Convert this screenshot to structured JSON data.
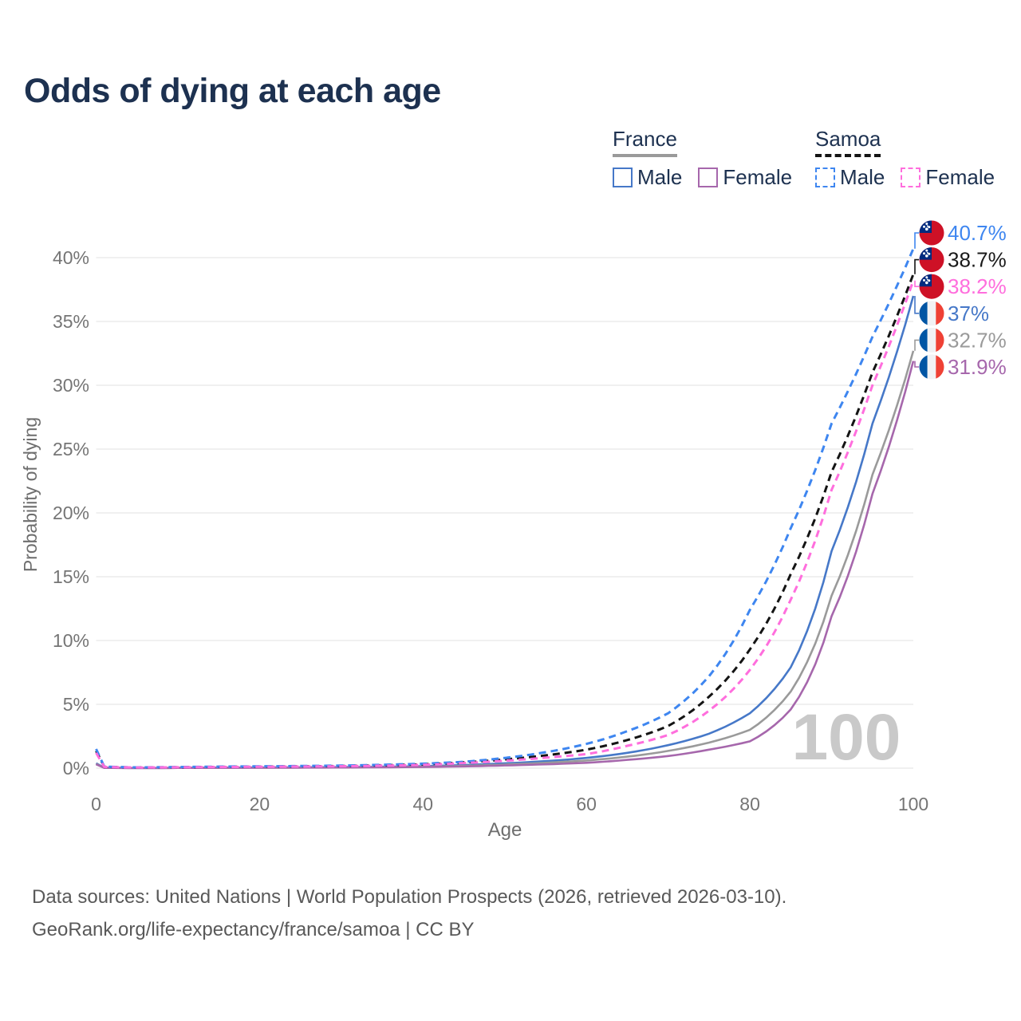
{
  "title": "Odds of dying at each age",
  "legend": {
    "groups": [
      {
        "country": "France",
        "line_style": "solid",
        "underline_color": "#9a9a9a",
        "items": [
          {
            "label": "Male",
            "color": "#4678C8"
          },
          {
            "label": "Female",
            "color": "#A667AC"
          }
        ]
      },
      {
        "country": "Samoa",
        "line_style": "dashed",
        "underline_color": "#141414",
        "items": [
          {
            "label": "Male",
            "color": "#3E86F0"
          },
          {
            "label": "Female",
            "color": "#FF6EDD"
          }
        ]
      }
    ]
  },
  "chart_data": {
    "type": "line",
    "title": "Odds of dying at each age",
    "xlabel": "Age",
    "ylabel": "Probability of dying",
    "xlim": [
      0,
      100
    ],
    "ylim": [
      0,
      42
    ],
    "x_ticks": [
      0,
      20,
      40,
      60,
      80,
      100
    ],
    "y_ticks": [
      0,
      5,
      10,
      15,
      20,
      25,
      30,
      35,
      40
    ],
    "y_tick_suffix": "%",
    "grid": "horizontal",
    "legend_position": "top-right",
    "watermark": "100",
    "series": [
      {
        "id": "samoa-male",
        "name": "Samoa — Male",
        "country": "Samoa",
        "sex": "Male",
        "color": "#3E86F0",
        "line": "dashed",
        "end_label": "40.7%",
        "end_value": 40.7,
        "points": [
          [
            0,
            1.5
          ],
          [
            1,
            0.12
          ],
          [
            5,
            0.06
          ],
          [
            15,
            0.12
          ],
          [
            30,
            0.2
          ],
          [
            40,
            0.35
          ],
          [
            45,
            0.5
          ],
          [
            50,
            0.8
          ],
          [
            55,
            1.25
          ],
          [
            60,
            1.9
          ],
          [
            65,
            2.9
          ],
          [
            70,
            4.3
          ],
          [
            75,
            7.2
          ],
          [
            80,
            12.4
          ],
          [
            85,
            18.8
          ],
          [
            90,
            27.0
          ],
          [
            95,
            33.8
          ],
          [
            100,
            40.7
          ]
        ]
      },
      {
        "id": "samoa-all",
        "name": "Samoa — Both sexes",
        "country": "Samoa",
        "sex": "Both",
        "color": "#141414",
        "line": "dashed",
        "end_label": "38.7%",
        "end_value": 38.7,
        "points": [
          [
            0,
            1.35
          ],
          [
            1,
            0.11
          ],
          [
            5,
            0.05
          ],
          [
            15,
            0.1
          ],
          [
            30,
            0.17
          ],
          [
            40,
            0.3
          ],
          [
            45,
            0.45
          ],
          [
            50,
            0.68
          ],
          [
            55,
            1.0
          ],
          [
            60,
            1.45
          ],
          [
            65,
            2.2
          ],
          [
            70,
            3.3
          ],
          [
            75,
            5.6
          ],
          [
            80,
            9.3
          ],
          [
            85,
            15.2
          ],
          [
            90,
            23.2
          ],
          [
            95,
            31.0
          ],
          [
            100,
            38.7
          ]
        ]
      },
      {
        "id": "samoa-female",
        "name": "Samoa — Female",
        "country": "Samoa",
        "sex": "Female",
        "color": "#FF6EDD",
        "line": "dashed",
        "end_label": "38.2%",
        "end_value": 38.2,
        "points": [
          [
            0,
            1.2
          ],
          [
            1,
            0.1
          ],
          [
            5,
            0.05
          ],
          [
            15,
            0.09
          ],
          [
            30,
            0.15
          ],
          [
            40,
            0.26
          ],
          [
            45,
            0.4
          ],
          [
            50,
            0.58
          ],
          [
            55,
            0.82
          ],
          [
            60,
            1.1
          ],
          [
            65,
            1.75
          ],
          [
            70,
            2.6
          ],
          [
            75,
            4.5
          ],
          [
            80,
            7.7
          ],
          [
            85,
            13.2
          ],
          [
            90,
            21.8
          ],
          [
            95,
            30.0
          ],
          [
            100,
            38.2
          ]
        ]
      },
      {
        "id": "france-male",
        "name": "France — Male",
        "country": "France",
        "sex": "Male",
        "color": "#4678C8",
        "line": "solid",
        "end_label": "37%",
        "end_value": 37,
        "points": [
          [
            0,
            0.38
          ],
          [
            1,
            0.03
          ],
          [
            5,
            0.01
          ],
          [
            15,
            0.04
          ],
          [
            30,
            0.08
          ],
          [
            40,
            0.15
          ],
          [
            45,
            0.25
          ],
          [
            50,
            0.38
          ],
          [
            55,
            0.55
          ],
          [
            60,
            0.8
          ],
          [
            65,
            1.2
          ],
          [
            70,
            1.8
          ],
          [
            75,
            2.7
          ],
          [
            80,
            4.3
          ],
          [
            85,
            7.9
          ],
          [
            90,
            17.0
          ],
          [
            95,
            27.0
          ],
          [
            100,
            37.0
          ]
        ]
      },
      {
        "id": "france-all",
        "name": "France — Both sexes",
        "country": "France",
        "sex": "Both",
        "color": "#9A9A9A",
        "line": "solid",
        "end_label": "32.7%",
        "end_value": 32.7,
        "points": [
          [
            0,
            0.33
          ],
          [
            1,
            0.025
          ],
          [
            5,
            0.01
          ],
          [
            15,
            0.03
          ],
          [
            30,
            0.06
          ],
          [
            40,
            0.11
          ],
          [
            45,
            0.18
          ],
          [
            50,
            0.28
          ],
          [
            55,
            0.42
          ],
          [
            60,
            0.6
          ],
          [
            65,
            0.9
          ],
          [
            70,
            1.35
          ],
          [
            75,
            2.0
          ],
          [
            80,
            3.0
          ],
          [
            85,
            6.0
          ],
          [
            90,
            13.5
          ],
          [
            95,
            23.0
          ],
          [
            100,
            32.7
          ]
        ]
      },
      {
        "id": "france-female",
        "name": "France — Female",
        "country": "France",
        "sex": "Female",
        "color": "#A667AC",
        "line": "solid",
        "end_label": "31.9%",
        "end_value": 31.9,
        "points": [
          [
            0,
            0.3
          ],
          [
            1,
            0.02
          ],
          [
            5,
            0.01
          ],
          [
            15,
            0.025
          ],
          [
            30,
            0.05
          ],
          [
            40,
            0.09
          ],
          [
            45,
            0.14
          ],
          [
            50,
            0.21
          ],
          [
            55,
            0.3
          ],
          [
            60,
            0.42
          ],
          [
            65,
            0.65
          ],
          [
            70,
            0.95
          ],
          [
            75,
            1.45
          ],
          [
            80,
            2.1
          ],
          [
            85,
            4.6
          ],
          [
            90,
            11.9
          ],
          [
            95,
            21.5
          ],
          [
            100,
            31.9
          ]
        ]
      }
    ]
  },
  "flags": {
    "samoa": {
      "field": "#CE1126",
      "canton": "#002B7F",
      "stars": "#FFFFFF"
    },
    "france": {
      "blue": "#0055A4",
      "white": "#F2F2F4",
      "red": "#EF4135"
    }
  },
  "colors": {
    "title": "#1d3150",
    "legend_text": "#1d3150",
    "tick_label": "#757575",
    "axis_title": "#6e6e6e",
    "grid": "#ececec",
    "watermark": "#c9c9c9",
    "footer": "#595959",
    "background": "#ffffff"
  },
  "footer": {
    "line1": "Data sources: United Nations | World Population Prospects (2026, retrieved 2026-03-10).",
    "line2": "GeoRank.org/life-expectancy/france/samoa | CC BY"
  }
}
